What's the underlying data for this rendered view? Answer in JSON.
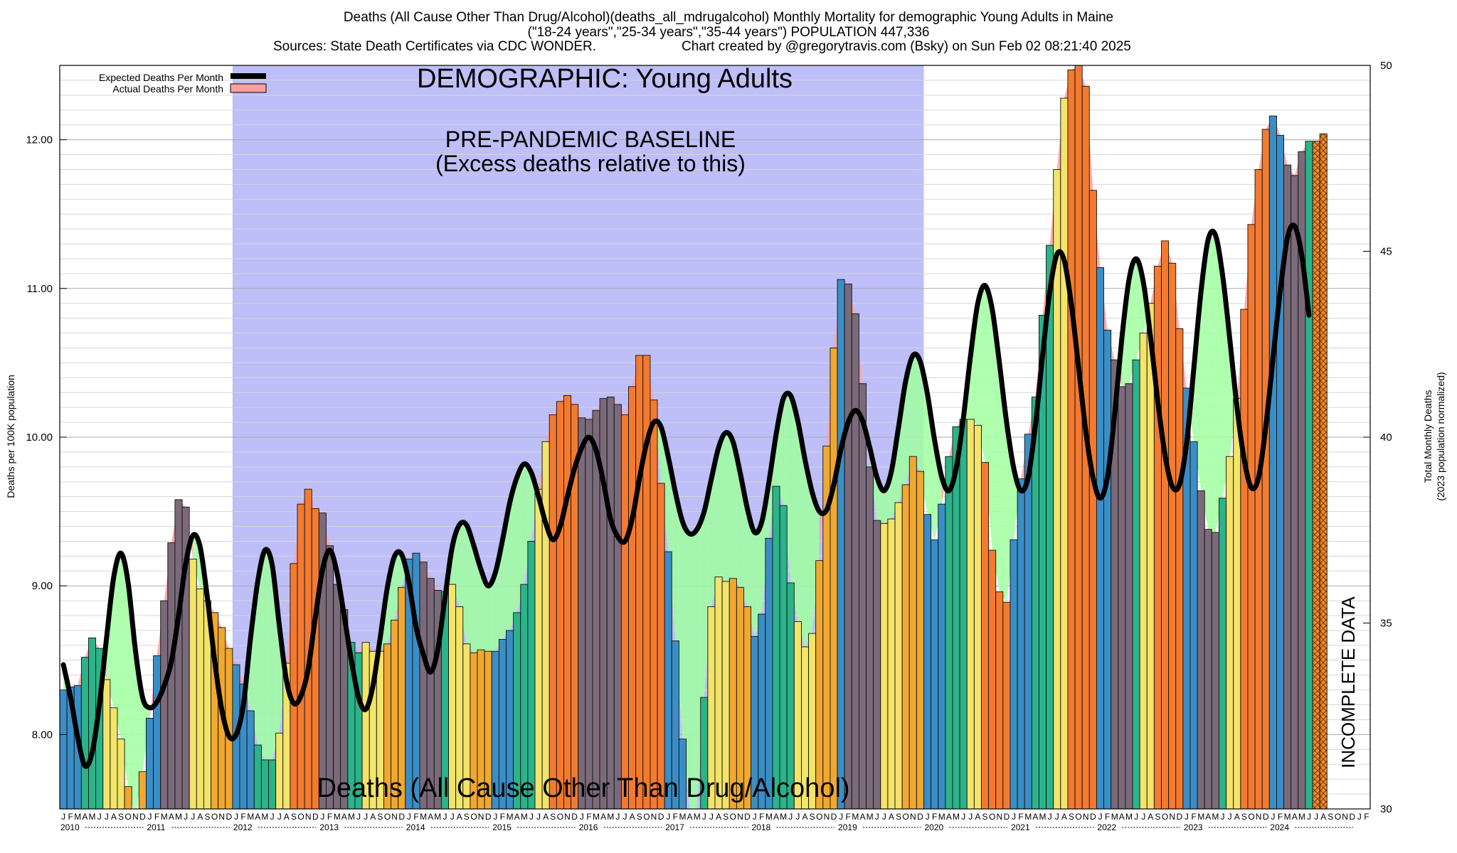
{
  "header": {
    "title_line1": "Deaths (All Cause Other Than Drug/Alcohol)(deaths_all_mdrugalcohol) Monthly Mortality for demographic Young Adults in Maine",
    "title_line2": "(\"18-24 years\",\"25-34 years\",\"35-44 years\") POPULATION 447,336",
    "sources": "Sources: State Death Certificates via CDC WONDER.",
    "credit": "Chart created by @gregorytravis.com (Bsky) on Sun Feb 02 08:21:40 2025"
  },
  "annotations": {
    "demographic": "DEMOGRAPHIC: Young Adults",
    "baseline_line1": "PRE-PANDEMIC BASELINE",
    "baseline_line2": "(Excess deaths relative to this)",
    "metric_label": "Deaths (All Cause Other Than Drug/Alcohol)",
    "incomplete": "INCOMPLETE DATA"
  },
  "colors": {
    "baseline_band": "#bebef8",
    "expected_line": "#000000",
    "excess_fill": "#ffa0a0",
    "deficit_fill": "#a0ffa0",
    "bar_winter": "#3a8ec6",
    "bar_spring": "#2bb38a",
    "bar_summer": "#f3e46a",
    "bar_autumn": "#f0a830",
    "bar_excess": "#f47a30",
    "bar_excess_spring": "#7a6a7a"
  },
  "chart_data": {
    "type": "bar",
    "x_start": "2010-01",
    "month_letters": [
      "J",
      "F",
      "M",
      "A",
      "M",
      "J",
      "J",
      "A",
      "S",
      "O",
      "N",
      "D"
    ],
    "years": [
      "2010",
      "2011",
      "2012",
      "2013",
      "2014",
      "2015",
      "2016",
      "2017",
      "2018",
      "2019",
      "2020",
      "2021",
      "2022",
      "2023",
      "2024"
    ],
    "ylabel_left": "Deaths per 100K population",
    "ylabel_right_line1": "Total Monthly Deaths",
    "ylabel_right_line2": "(2023 population normalized)",
    "y_left_ticks": [
      "8.00",
      "9.00",
      "10.00",
      "11.00",
      "12.00"
    ],
    "y_right_ticks": [
      "30",
      "35",
      "40",
      "45",
      "50"
    ],
    "ylim_left": [
      7.5,
      12.5
    ],
    "ylim_right": [
      30,
      50
    ],
    "grid": true,
    "legend_position": "top-left",
    "baseline_period": [
      "2012-01",
      "2019-12"
    ],
    "incomplete_from": "2024-07",
    "series": [
      {
        "name": "Actual Deaths Per Month",
        "values": [
          8.3,
          8.32,
          8.33,
          8.52,
          8.65,
          8.58,
          8.37,
          8.18,
          7.97,
          7.65,
          7.45,
          7.75,
          8.11,
          8.53,
          8.9,
          9.29,
          9.58,
          9.53,
          9.18,
          8.98,
          8.9,
          8.82,
          8.72,
          8.58,
          8.47,
          8.34,
          8.16,
          7.93,
          7.83,
          7.83,
          8.01,
          8.48,
          9.15,
          9.55,
          9.65,
          9.52,
          9.49,
          9.27,
          9.01,
          8.84,
          8.62,
          8.55,
          8.62,
          8.56,
          8.56,
          8.61,
          8.77,
          8.99,
          9.18,
          9.22,
          9.16,
          9.05,
          8.97,
          8.96,
          9.01,
          8.86,
          8.61,
          8.55,
          8.57,
          8.56,
          8.56,
          8.64,
          8.7,
          8.82,
          9.01,
          9.3,
          9.65,
          9.97,
          10.15,
          10.24,
          10.28,
          10.22,
          10.13,
          10.12,
          10.18,
          10.26,
          10.27,
          10.22,
          10.15,
          10.34,
          10.55,
          10.55,
          10.25,
          9.69,
          9.23,
          8.63,
          7.97,
          7.5,
          7.5,
          8.25,
          8.86,
          9.06,
          9.03,
          9.05,
          8.99,
          8.86,
          8.66,
          8.81,
          9.32,
          9.67,
          9.54,
          9.02,
          8.76,
          8.59,
          8.68,
          9.17,
          9.94,
          10.6,
          11.06,
          11.03,
          10.83,
          10.36,
          9.8,
          9.44,
          9.42,
          9.45,
          9.56,
          9.68,
          9.87,
          9.77,
          9.48,
          9.31,
          9.55,
          9.87,
          10.07,
          10.12,
          10.12,
          10.08,
          9.83,
          9.24,
          8.96,
          8.89,
          9.31,
          9.72,
          10.02,
          10.27,
          10.82,
          11.29,
          11.8,
          12.28,
          12.47,
          12.5,
          12.36,
          11.66,
          11.14,
          10.72,
          10.52,
          10.34,
          10.36,
          10.52,
          10.7,
          10.9,
          11.15,
          11.32,
          11.17,
          10.73,
          10.33,
          9.97,
          9.64,
          9.38,
          9.36,
          9.59,
          9.87,
          10.26,
          10.86,
          11.43,
          11.8,
          12.07,
          12.16,
          12.03,
          11.83,
          11.76,
          11.92,
          11.99,
          11.99,
          12.04
        ],
        "colors": [
          "w",
          "w",
          "w",
          "s",
          "s",
          "s",
          "y",
          "y",
          "y",
          "o",
          "o",
          "o",
          "w",
          "w",
          "x",
          "x",
          "x",
          "x",
          "y",
          "y",
          "y",
          "o",
          "o",
          "o",
          "w",
          "w",
          "w",
          "s",
          "s",
          "s",
          "y",
          "y",
          "e",
          "e",
          "e",
          "e",
          "x",
          "x",
          "x",
          "x",
          "s",
          "s",
          "y",
          "y",
          "y",
          "o",
          "o",
          "o",
          "w",
          "w",
          "x",
          "x",
          "x",
          "s",
          "y",
          "y",
          "y",
          "o",
          "o",
          "o",
          "w",
          "w",
          "w",
          "s",
          "s",
          "s",
          "y",
          "y",
          "e",
          "e",
          "e",
          "e",
          "x",
          "x",
          "x",
          "x",
          "x",
          "x",
          "e",
          "e",
          "e",
          "e",
          "e",
          "e",
          "w",
          "w",
          "w",
          "s",
          "s",
          "s",
          "y",
          "y",
          "y",
          "o",
          "o",
          "o",
          "w",
          "w",
          "w",
          "s",
          "s",
          "s",
          "y",
          "y",
          "y",
          "o",
          "o",
          "o",
          "w",
          "x",
          "x",
          "x",
          "x",
          "x",
          "y",
          "y",
          "y",
          "o",
          "o",
          "o",
          "w",
          "w",
          "w",
          "s",
          "s",
          "s",
          "y",
          "y",
          "e",
          "e",
          "e",
          "e",
          "w",
          "w",
          "w",
          "s",
          "s",
          "s",
          "y",
          "y",
          "e",
          "e",
          "e",
          "e",
          "w",
          "w",
          "x",
          "x",
          "x",
          "s",
          "y",
          "y",
          "e",
          "e",
          "e",
          "e",
          "w",
          "w",
          "x",
          "x",
          "x",
          "s",
          "y",
          "y",
          "e",
          "e",
          "e",
          "e",
          "w",
          "w",
          "x",
          "x",
          "x",
          "s"
        ]
      },
      {
        "name": "Expected Deaths Per Month",
        "values": [
          8.47,
          8.25,
          7.98,
          7.79,
          7.88,
          8.2,
          8.65,
          9.06,
          9.22,
          9.02,
          8.57,
          8.25,
          8.18,
          8.22,
          8.33,
          8.49,
          8.8,
          9.15,
          9.34,
          9.26,
          8.92,
          8.5,
          8.17,
          7.99,
          8.0,
          8.2,
          8.65,
          9.03,
          9.24,
          9.14,
          8.73,
          8.36,
          8.21,
          8.26,
          8.44,
          8.79,
          9.11,
          9.24,
          9.09,
          8.8,
          8.5,
          8.25,
          8.17,
          8.33,
          8.65,
          8.99,
          9.2,
          9.21,
          9.02,
          8.72,
          8.54,
          8.42,
          8.57,
          8.92,
          9.26,
          9.41,
          9.41,
          9.27,
          9.11,
          9.0,
          9.09,
          9.31,
          9.56,
          9.73,
          9.82,
          9.76,
          9.6,
          9.42,
          9.31,
          9.4,
          9.6,
          9.79,
          9.93,
          10.0,
          9.91,
          9.7,
          9.45,
          9.33,
          9.3,
          9.45,
          9.72,
          9.96,
          10.1,
          10.07,
          9.87,
          9.63,
          9.43,
          9.35,
          9.38,
          9.5,
          9.72,
          9.93,
          10.03,
          9.97,
          9.76,
          9.52,
          9.36,
          9.43,
          9.7,
          10.02,
          10.26,
          10.28,
          10.11,
          9.85,
          9.63,
          9.5,
          9.51,
          9.68,
          9.92,
          10.1,
          10.18,
          10.11,
          9.93,
          9.73,
          9.64,
          9.77,
          10.07,
          10.38,
          10.55,
          10.51,
          10.29,
          9.98,
          9.73,
          9.64,
          9.79,
          10.13,
          10.55,
          10.9,
          11.02,
          10.86,
          10.5,
          10.1,
          9.79,
          9.64,
          9.73,
          10.08,
          10.55,
          10.98,
          11.23,
          11.19,
          10.89,
          10.47,
          10.04,
          9.73,
          9.59,
          9.73,
          10.15,
          10.66,
          11.06,
          11.2,
          11.04,
          10.67,
          10.24,
          9.88,
          9.67,
          9.68,
          9.96,
          10.46,
          10.98,
          11.33,
          11.36,
          11.09,
          10.66,
          10.2,
          9.85,
          9.66,
          9.73,
          10.07,
          10.53,
          10.98,
          11.34,
          11.42,
          11.22,
          10.82
        ]
      }
    ]
  }
}
